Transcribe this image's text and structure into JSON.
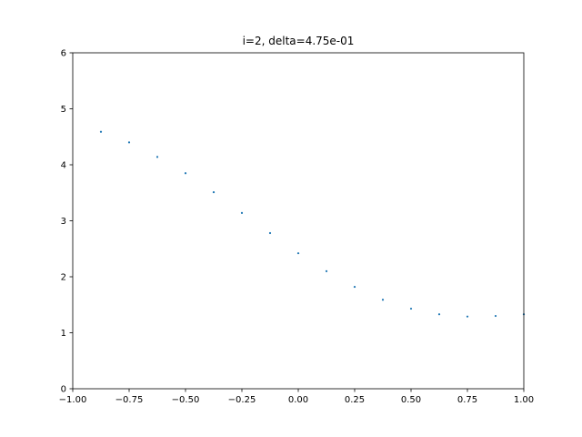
{
  "chart_data": {
    "type": "scatter",
    "title": "i=2, delta=4.75e-01",
    "xlabel": "",
    "ylabel": "",
    "xlim": [
      -1.0,
      1.0
    ],
    "ylim": [
      0,
      6
    ],
    "xticks": [
      -1.0,
      -0.75,
      -0.5,
      -0.25,
      0.0,
      0.25,
      0.5,
      0.75,
      1.0
    ],
    "xtick_labels": [
      "−1.00",
      "−0.75",
      "−0.50",
      "−0.25",
      "0.00",
      "0.25",
      "0.50",
      "0.75",
      "1.00"
    ],
    "yticks": [
      0,
      1,
      2,
      3,
      4,
      5,
      6
    ],
    "ytick_labels": [
      "0",
      "1",
      "2",
      "3",
      "4",
      "5",
      "6"
    ],
    "grid": false,
    "marker_color": "#1f77b4",
    "series": [
      {
        "x": [
          -0.875,
          -0.75,
          -0.625,
          -0.5,
          -0.375,
          -0.25,
          -0.125,
          0.0,
          0.125,
          0.25,
          0.375,
          0.5,
          0.625,
          0.75,
          0.875,
          1.0
        ],
        "y": [
          4.59,
          4.4,
          4.14,
          3.85,
          3.51,
          3.14,
          2.78,
          2.42,
          2.1,
          1.82,
          1.59,
          1.43,
          1.33,
          1.29,
          1.3,
          1.33
        ]
      }
    ]
  }
}
